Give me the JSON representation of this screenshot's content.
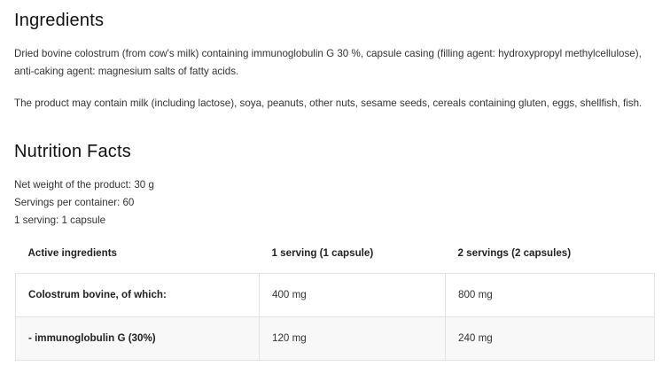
{
  "ingredients": {
    "title": "Ingredients",
    "paragraph1": "Dried bovine colostrum (from cow's milk) containing immunoglobulin G 30 %, capsule casing (filling agent: hydroxypropyl methylcellulose), anti-caking agent: magnesium salts of fatty acids.",
    "paragraph2": "The product may contain milk (including lactose), soya, peanuts, other nuts, sesame seeds, cereals containing gluten, eggs, shellfish, fish."
  },
  "nutrition": {
    "title": "Nutrition Facts",
    "net_weight": "Net weight of the product: 30 g",
    "servings": "Servings per container: 60",
    "serving_size": "1 serving: 1 capsule",
    "table": {
      "headers": [
        "Active ingredients",
        "1 serving (1 capsule)",
        "2 servings (2 capsules)"
      ],
      "rows": [
        [
          "Colostrum bovine, of which:",
          "400 mg",
          "800 mg"
        ],
        [
          "- immunoglobulin G (30%)",
          "120 mg",
          "240 mg"
        ]
      ]
    }
  }
}
